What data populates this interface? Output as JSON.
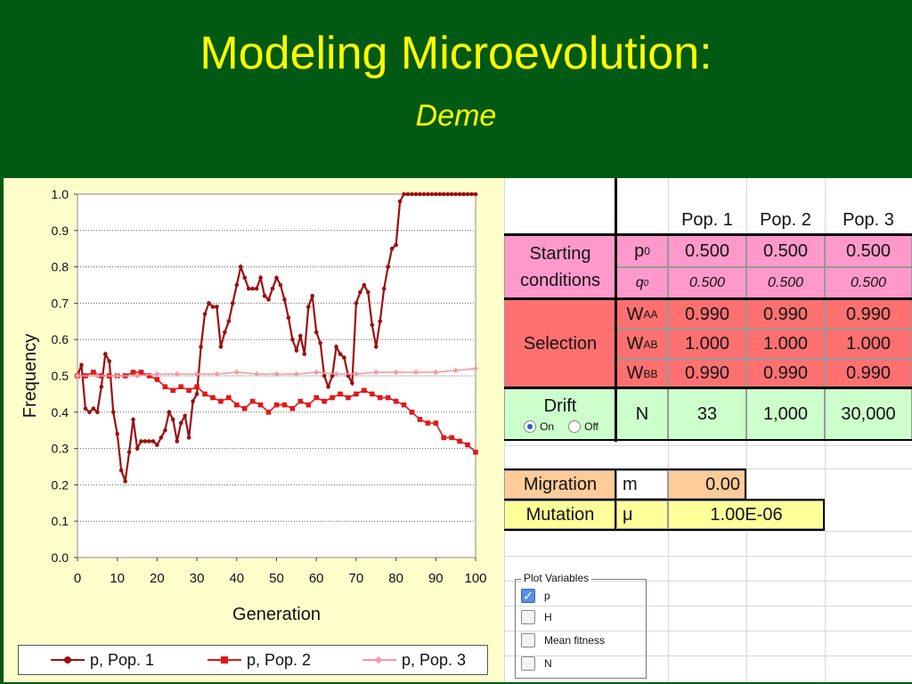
{
  "slide": {
    "title": "Modeling Microevolution:",
    "subtitle": "Deme"
  },
  "colors": {
    "background": "#005a14",
    "title": "#ffff00",
    "chart_panel": "#ffffcc",
    "pop1": "#9b1010",
    "pop2": "#e01818",
    "pop3": "#f49aa0",
    "starting": "#ff99cc",
    "selection": "#ff7070",
    "drift": "#ccffcc",
    "migration": "#ffcc99",
    "mutation": "#ffff99"
  },
  "chart_data": {
    "type": "line",
    "xlabel": "Generation",
    "ylabel": "Frequency",
    "xlim": [
      0,
      100
    ],
    "ylim": [
      0,
      1.0
    ],
    "x_ticks": [
      "0",
      "10",
      "20",
      "30",
      "40",
      "50",
      "60",
      "70",
      "80",
      "90",
      "100"
    ],
    "y_ticks": [
      "0.0",
      "0.1",
      "0.2",
      "0.3",
      "0.4",
      "0.5",
      "0.6",
      "0.7",
      "0.8",
      "0.9",
      "1.0"
    ],
    "grid": "horizontal dotted",
    "legend_position": "bottom",
    "series": [
      {
        "name": "p, Pop. 1",
        "x": [
          0,
          1,
          2,
          3,
          4,
          5,
          6,
          7,
          8,
          9,
          10,
          11,
          12,
          13,
          14,
          15,
          16,
          17,
          18,
          19,
          20,
          21,
          22,
          23,
          24,
          25,
          26,
          27,
          28,
          29,
          30,
          31,
          32,
          33,
          34,
          35,
          36,
          37,
          38,
          39,
          40,
          41,
          42,
          43,
          44,
          45,
          46,
          47,
          48,
          49,
          50,
          51,
          52,
          53,
          54,
          55,
          56,
          57,
          58,
          59,
          60,
          61,
          62,
          63,
          64,
          65,
          66,
          67,
          68,
          69,
          70,
          71,
          72,
          73,
          74,
          75,
          76,
          77,
          78,
          79,
          80,
          81,
          82,
          83,
          84,
          85,
          86,
          87,
          88,
          89,
          90,
          91,
          92,
          93,
          94,
          95,
          96,
          97,
          98,
          99,
          100
        ],
        "values": [
          0.5,
          0.53,
          0.41,
          0.4,
          0.41,
          0.4,
          0.47,
          0.56,
          0.54,
          0.4,
          0.34,
          0.24,
          0.21,
          0.29,
          0.38,
          0.3,
          0.32,
          0.32,
          0.32,
          0.32,
          0.31,
          0.33,
          0.35,
          0.4,
          0.38,
          0.32,
          0.37,
          0.39,
          0.33,
          0.43,
          0.45,
          0.58,
          0.67,
          0.7,
          0.69,
          0.69,
          0.58,
          0.62,
          0.65,
          0.7,
          0.75,
          0.8,
          0.77,
          0.74,
          0.74,
          0.74,
          0.77,
          0.72,
          0.71,
          0.74,
          0.77,
          0.75,
          0.71,
          0.66,
          0.6,
          0.57,
          0.61,
          0.56,
          0.69,
          0.72,
          0.62,
          0.59,
          0.5,
          0.47,
          0.5,
          0.58,
          0.56,
          0.55,
          0.5,
          0.48,
          0.7,
          0.73,
          0.75,
          0.73,
          0.64,
          0.58,
          0.65,
          0.74,
          0.8,
          0.85,
          0.86,
          0.98,
          1.0,
          1.0,
          1.0,
          1.0,
          1.0,
          1.0,
          1.0,
          1.0,
          1.0,
          1.0,
          1.0,
          1.0,
          1.0,
          1.0,
          1.0,
          1.0,
          1.0,
          1.0,
          1.0
        ]
      },
      {
        "name": "p, Pop. 2",
        "x": [
          0,
          2,
          4,
          6,
          8,
          10,
          12,
          14,
          16,
          18,
          20,
          22,
          24,
          26,
          28,
          30,
          32,
          34,
          36,
          38,
          40,
          42,
          44,
          46,
          48,
          50,
          52,
          54,
          56,
          58,
          60,
          62,
          64,
          66,
          68,
          70,
          72,
          74,
          76,
          78,
          80,
          82,
          84,
          86,
          88,
          90,
          92,
          94,
          96,
          98,
          100
        ],
        "values": [
          0.5,
          0.5,
          0.51,
          0.5,
          0.5,
          0.5,
          0.5,
          0.51,
          0.51,
          0.5,
          0.49,
          0.47,
          0.46,
          0.47,
          0.46,
          0.47,
          0.45,
          0.44,
          0.43,
          0.44,
          0.42,
          0.41,
          0.43,
          0.42,
          0.4,
          0.42,
          0.42,
          0.41,
          0.43,
          0.42,
          0.44,
          0.43,
          0.44,
          0.45,
          0.44,
          0.45,
          0.46,
          0.45,
          0.44,
          0.44,
          0.43,
          0.42,
          0.4,
          0.38,
          0.37,
          0.37,
          0.33,
          0.33,
          0.32,
          0.31,
          0.29
        ]
      },
      {
        "name": "p, Pop. 3",
        "x": [
          0,
          5,
          10,
          15,
          20,
          25,
          30,
          35,
          40,
          45,
          50,
          55,
          60,
          65,
          70,
          75,
          80,
          85,
          90,
          95,
          100
        ],
        "values": [
          0.5,
          0.5,
          0.5,
          0.5,
          0.505,
          0.505,
          0.505,
          0.505,
          0.51,
          0.505,
          0.505,
          0.505,
          0.51,
          0.505,
          0.505,
          0.51,
          0.51,
          0.51,
          0.51,
          0.515,
          0.52
        ]
      }
    ]
  },
  "sheet": {
    "headers": [
      "Pop. 1",
      "Pop. 2",
      "Pop. 3"
    ],
    "starting": {
      "label_line1": "Starting",
      "label_line2": "conditions",
      "p_sym": "p",
      "p_sub": "0",
      "q_sym": "q",
      "q_sub": "0",
      "p0": [
        "0.500",
        "0.500",
        "0.500"
      ],
      "q0": [
        "0.500",
        "0.500",
        "0.500"
      ]
    },
    "selection": {
      "label": "Selection",
      "w_sym": "W",
      "rows": [
        {
          "sub": "AA",
          "values": [
            "0.990",
            "0.990",
            "0.990"
          ]
        },
        {
          "sub": "AB",
          "values": [
            "1.000",
            "1.000",
            "1.000"
          ]
        },
        {
          "sub": "BB",
          "values": [
            "0.990",
            "0.990",
            "0.990"
          ]
        }
      ]
    },
    "drift": {
      "label": "Drift",
      "on_label": "On",
      "off_label": "Off",
      "selected": "On",
      "n_label": "N",
      "n_values": [
        "33",
        "1,000",
        "30,000"
      ]
    },
    "migration": {
      "label": "Migration",
      "sym": "m",
      "value": "0.00"
    },
    "mutation": {
      "label": "Mutation",
      "sym": "μ",
      "value": "1.00E-06"
    }
  },
  "plot_variables": {
    "title": "Plot Variables",
    "items": [
      {
        "label": "p",
        "checked": true
      },
      {
        "label": "H",
        "checked": false
      },
      {
        "label": "Mean fitness",
        "checked": false
      },
      {
        "label": "N",
        "checked": false
      }
    ]
  }
}
